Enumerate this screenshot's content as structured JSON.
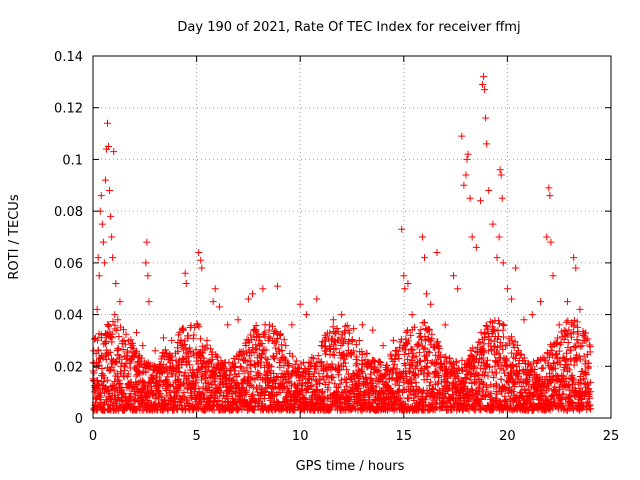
{
  "chart_data": {
    "type": "scatter",
    "title": "Day 190 of 2021, Rate Of TEC Index for receiver ffmj",
    "xlabel": "GPS time / hours",
    "ylabel": "ROTI / TECUs",
    "xlim": [
      0,
      25
    ],
    "ylim": [
      0,
      0.14
    ],
    "xticks": [
      0,
      5,
      10,
      15,
      20,
      25
    ],
    "xtick_labels": [
      "0",
      "5",
      "10",
      "15",
      "20",
      "25"
    ],
    "yticks": [
      0,
      0.02,
      0.04,
      0.06,
      0.08,
      0.1,
      0.12,
      0.14
    ],
    "ytick_labels": [
      "0",
      "0.02",
      "0.04",
      "0.06",
      "0.08",
      "0.1",
      "0.12",
      "0.14"
    ],
    "grid": true,
    "marker": "+",
    "color": "#ff0000",
    "series": [
      {
        "name": "ROTI",
        "points": [
          [
            0.1,
            0.012
          ],
          [
            0.15,
            0.025
          ],
          [
            0.2,
            0.042
          ],
          [
            0.25,
            0.062
          ],
          [
            0.3,
            0.055
          ],
          [
            0.35,
            0.08
          ],
          [
            0.4,
            0.086
          ],
          [
            0.45,
            0.075
          ],
          [
            0.5,
            0.068
          ],
          [
            0.55,
            0.06
          ],
          [
            0.6,
            0.092
          ],
          [
            0.65,
            0.104
          ],
          [
            0.7,
            0.114
          ],
          [
            0.75,
            0.105
          ],
          [
            0.8,
            0.088
          ],
          [
            0.85,
            0.078
          ],
          [
            0.9,
            0.07
          ],
          [
            0.95,
            0.062
          ],
          [
            1.0,
            0.103
          ],
          [
            1.05,
            0.04
          ],
          [
            1.1,
            0.052
          ],
          [
            1.2,
            0.038
          ],
          [
            1.3,
            0.045
          ],
          [
            1.5,
            0.03
          ],
          [
            1.8,
            0.022
          ],
          [
            2.1,
            0.033
          ],
          [
            2.4,
            0.028
          ],
          [
            2.55,
            0.06
          ],
          [
            2.6,
            0.068
          ],
          [
            2.65,
            0.055
          ],
          [
            2.7,
            0.045
          ],
          [
            3.0,
            0.026
          ],
          [
            3.4,
            0.031
          ],
          [
            3.8,
            0.024
          ],
          [
            4.2,
            0.029
          ],
          [
            4.45,
            0.056
          ],
          [
            4.5,
            0.052
          ],
          [
            4.7,
            0.035
          ],
          [
            5.0,
            0.022
          ],
          [
            5.1,
            0.064
          ],
          [
            5.2,
            0.061
          ],
          [
            5.25,
            0.058
          ],
          [
            5.5,
            0.03
          ],
          [
            5.8,
            0.045
          ],
          [
            5.9,
            0.05
          ],
          [
            6.1,
            0.043
          ],
          [
            6.5,
            0.036
          ],
          [
            7.0,
            0.038
          ],
          [
            7.5,
            0.046
          ],
          [
            7.7,
            0.048
          ],
          [
            8.0,
            0.03
          ],
          [
            8.2,
            0.05
          ],
          [
            8.5,
            0.034
          ],
          [
            8.9,
            0.051
          ],
          [
            9.3,
            0.028
          ],
          [
            9.6,
            0.036
          ],
          [
            10.0,
            0.044
          ],
          [
            10.3,
            0.04
          ],
          [
            10.8,
            0.046
          ],
          [
            11.2,
            0.032
          ],
          [
            11.6,
            0.038
          ],
          [
            12.0,
            0.04
          ],
          [
            12.5,
            0.03
          ],
          [
            13.0,
            0.036
          ],
          [
            13.5,
            0.034
          ],
          [
            14.0,
            0.028
          ],
          [
            14.5,
            0.03
          ],
          [
            14.9,
            0.073
          ],
          [
            15.0,
            0.055
          ],
          [
            15.05,
            0.05
          ],
          [
            15.2,
            0.052
          ],
          [
            15.4,
            0.04
          ],
          [
            15.9,
            0.07
          ],
          [
            16.0,
            0.062
          ],
          [
            16.1,
            0.048
          ],
          [
            16.3,
            0.044
          ],
          [
            16.6,
            0.064
          ],
          [
            17.0,
            0.036
          ],
          [
            17.4,
            0.055
          ],
          [
            17.6,
            0.05
          ],
          [
            17.8,
            0.109
          ],
          [
            17.9,
            0.09
          ],
          [
            18.0,
            0.094
          ],
          [
            18.05,
            0.1
          ],
          [
            18.1,
            0.102
          ],
          [
            18.2,
            0.085
          ],
          [
            18.3,
            0.07
          ],
          [
            18.5,
            0.066
          ],
          [
            18.7,
            0.084
          ],
          [
            18.8,
            0.129
          ],
          [
            18.85,
            0.132
          ],
          [
            18.9,
            0.127
          ],
          [
            18.95,
            0.116
          ],
          [
            19.0,
            0.106
          ],
          [
            19.1,
            0.088
          ],
          [
            19.3,
            0.075
          ],
          [
            19.5,
            0.062
          ],
          [
            19.6,
            0.07
          ],
          [
            19.65,
            0.096
          ],
          [
            19.7,
            0.094
          ],
          [
            19.75,
            0.085
          ],
          [
            19.8,
            0.06
          ],
          [
            20.0,
            0.05
          ],
          [
            20.2,
            0.046
          ],
          [
            20.4,
            0.058
          ],
          [
            20.8,
            0.038
          ],
          [
            21.2,
            0.04
          ],
          [
            21.6,
            0.045
          ],
          [
            21.9,
            0.07
          ],
          [
            22.0,
            0.089
          ],
          [
            22.05,
            0.086
          ],
          [
            22.1,
            0.068
          ],
          [
            22.2,
            0.055
          ],
          [
            22.5,
            0.036
          ],
          [
            22.9,
            0.045
          ],
          [
            23.2,
            0.062
          ],
          [
            23.3,
            0.058
          ],
          [
            23.5,
            0.042
          ],
          [
            23.8,
            0.03
          ],
          [
            23.9,
            0.02
          ]
        ]
      }
    ],
    "dense_band": {
      "description_values": "baseline noise between 0.003 and 0.03 across 0 to 24 hours",
      "x_start": 0,
      "x_end": 24,
      "y_min": 0.003,
      "y_max": 0.03
    }
  }
}
